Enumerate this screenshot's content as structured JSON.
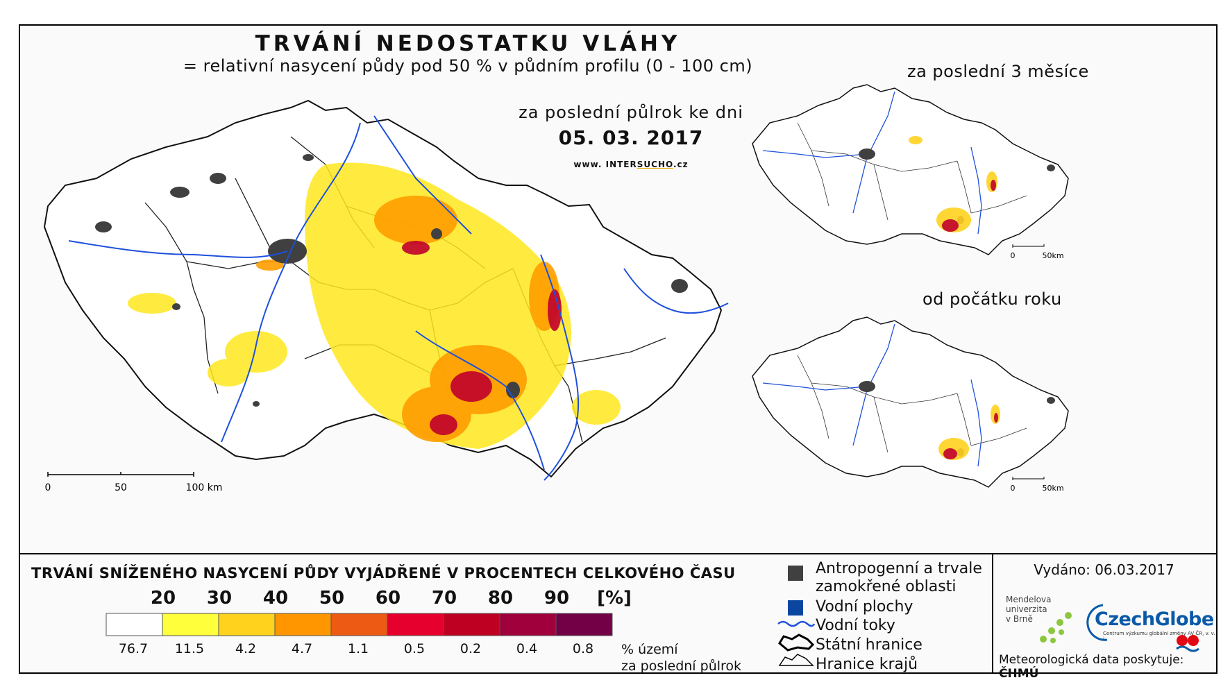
{
  "header": {
    "title": "TRVÁNÍ NEDOSTATKU VLÁHY",
    "subtitle": "= relativní nasycení půdy pod 50 % v půdním profilu (0 - 100 cm)",
    "period_label": "za poslední půlrok ke dni",
    "date": "05. 03. 2017",
    "website_prefix": "www. INTER",
    "website_accent": "SUCHO",
    "website_suffix": ".cz"
  },
  "main_map": {
    "scale_labels": [
      "0",
      "50",
      "100 km"
    ]
  },
  "insets": [
    {
      "title": "za poslední 3 měsíce",
      "scale_labels": [
        "0",
        "50km"
      ]
    },
    {
      "title": "od počátku roku",
      "scale_labels": [
        "0",
        "50km"
      ]
    }
  ],
  "legend": {
    "title": "TRVÁNÍ SNÍŽENÉHO NASYCENÍ PŮDY VYJÁDŘENÉ V PROCENTECH CELKOVÉHO ČASU",
    "thresholds": [
      "20",
      "30",
      "40",
      "50",
      "60",
      "70",
      "80",
      "90",
      "[%]"
    ],
    "colors": [
      "#ffffff",
      "#ffff3c",
      "#ffd21e",
      "#ff9600",
      "#ec5a14",
      "#e6002d",
      "#be0023",
      "#a0003c",
      "#730046"
    ],
    "percentages": [
      "76.7",
      "11.5",
      "4.2",
      "4.7",
      "1.1",
      "0.5",
      "0.2",
      "0.4",
      "0.8"
    ],
    "percent_unit_line1": "% území",
    "percent_unit_line2": "za poslední půlrok"
  },
  "key": {
    "anthropogenic_line1": "Antropogenní a trvale",
    "anthropogenic_line2": "zamokřené oblasti",
    "water_areas": "Vodní plochy",
    "rivers": "Vodní toky",
    "state_border": "Státní hranice",
    "region_border": "Hranice krajů",
    "colors": {
      "anthropogenic": "#404040",
      "water": "#0a46a0",
      "river": "#1e50dc"
    }
  },
  "footer": {
    "issued": "Vydáno: 06.03.2017",
    "mendel_line1": "Mendelova",
    "mendel_line2": "univerzita",
    "mendel_line3": "v Brně",
    "czechglobe": "CzechGlobe",
    "czechglobe_sub": "Centrum výzkumu globální změny AV ČR, v. v. i.",
    "meteo_label": "Meteorologická data poskytuje:",
    "chmu": "ČHMÚ"
  }
}
